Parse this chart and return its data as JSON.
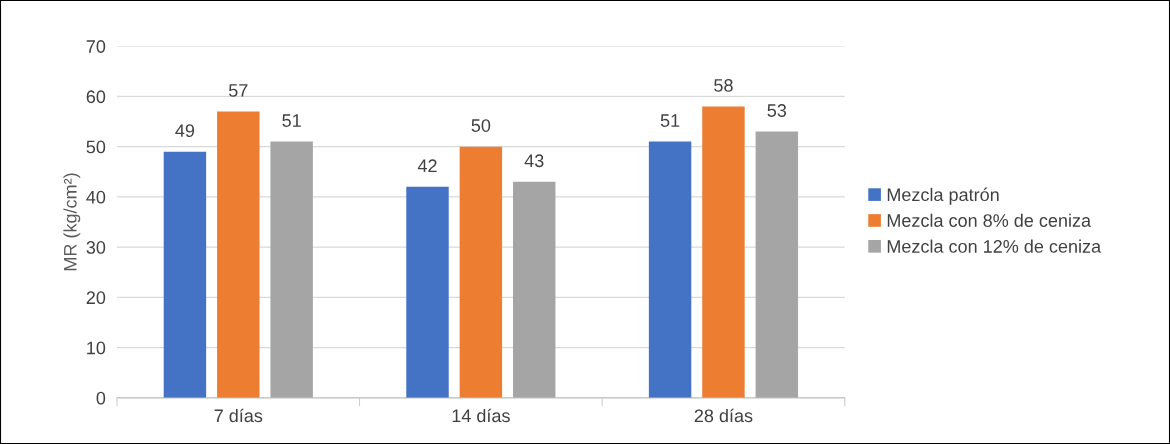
{
  "chart_data": {
    "type": "bar",
    "ylabel": "MR (kg/cm²)",
    "categories": [
      "7 días",
      "14 días",
      "28 días"
    ],
    "series": [
      {
        "name": "Mezcla patrón",
        "color": "#4472c4",
        "values": [
          49,
          42,
          51
        ]
      },
      {
        "name": "Mezcla con 8% de ceniza",
        "color": "#ed7d31",
        "values": [
          57,
          50,
          58
        ]
      },
      {
        "name": "Mezcla con 12% de ceniza",
        "color": "#a5a5a5",
        "values": [
          51,
          43,
          53
        ]
      }
    ],
    "ylim": [
      0,
      70
    ],
    "yticks": [
      0,
      10,
      20,
      30,
      40,
      50,
      60,
      70
    ],
    "grid": "y",
    "legend": "right",
    "data_labels": true
  }
}
